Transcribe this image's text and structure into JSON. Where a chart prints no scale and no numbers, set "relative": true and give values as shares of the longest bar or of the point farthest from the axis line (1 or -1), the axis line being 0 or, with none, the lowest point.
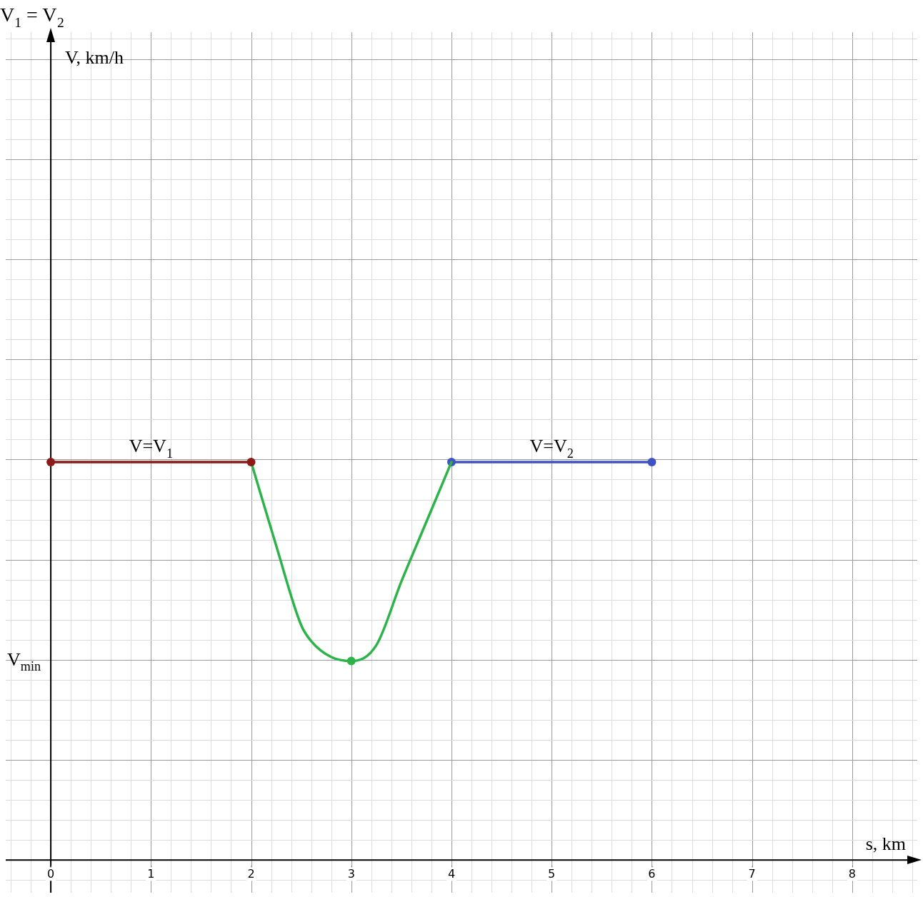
{
  "chart_data": {
    "type": "line",
    "title": "V$_{1}$ = V$_{2}$",
    "xlabel": "s, km",
    "relative": true,
    "xlim": [
      -0.45,
      8.65
    ],
    "xticks": [
      0,
      1,
      2,
      3,
      4,
      5,
      6,
      7,
      8
    ],
    "tick_labels": "x",
    "grid": true,
    "legend": false,
    "marker": "circle",
    "line_style": "solid",
    "annotations": [
      "V$_{min}$",
      "V, km/h"
    ],
    "series": [
      {
        "name": "V=V$_{1}$",
        "color": "#8b1a1a",
        "x": [
          0,
          2
        ],
        "values": [
          1,
          1
        ]
      },
      {
        "color": "#2db34a",
        "x": [
          2,
          2.25,
          2.5,
          2.6,
          2.8,
          3,
          3.25,
          3.5,
          3.75,
          4
        ],
        "values": [
          1,
          0.79,
          0.59,
          0.55,
          0.51,
          0.5,
          0.54,
          0.7,
          0.85,
          1
        ],
        "marker": "none"
      },
      {
        "type": "scatter",
        "color": "#2db34a",
        "x": [
          3
        ],
        "values": [
          0.5
        ]
      },
      {
        "name": "V=V$_{2}$",
        "color": "#3f51c4",
        "x": [
          4,
          6
        ],
        "values": [
          1,
          1
        ]
      }
    ]
  }
}
